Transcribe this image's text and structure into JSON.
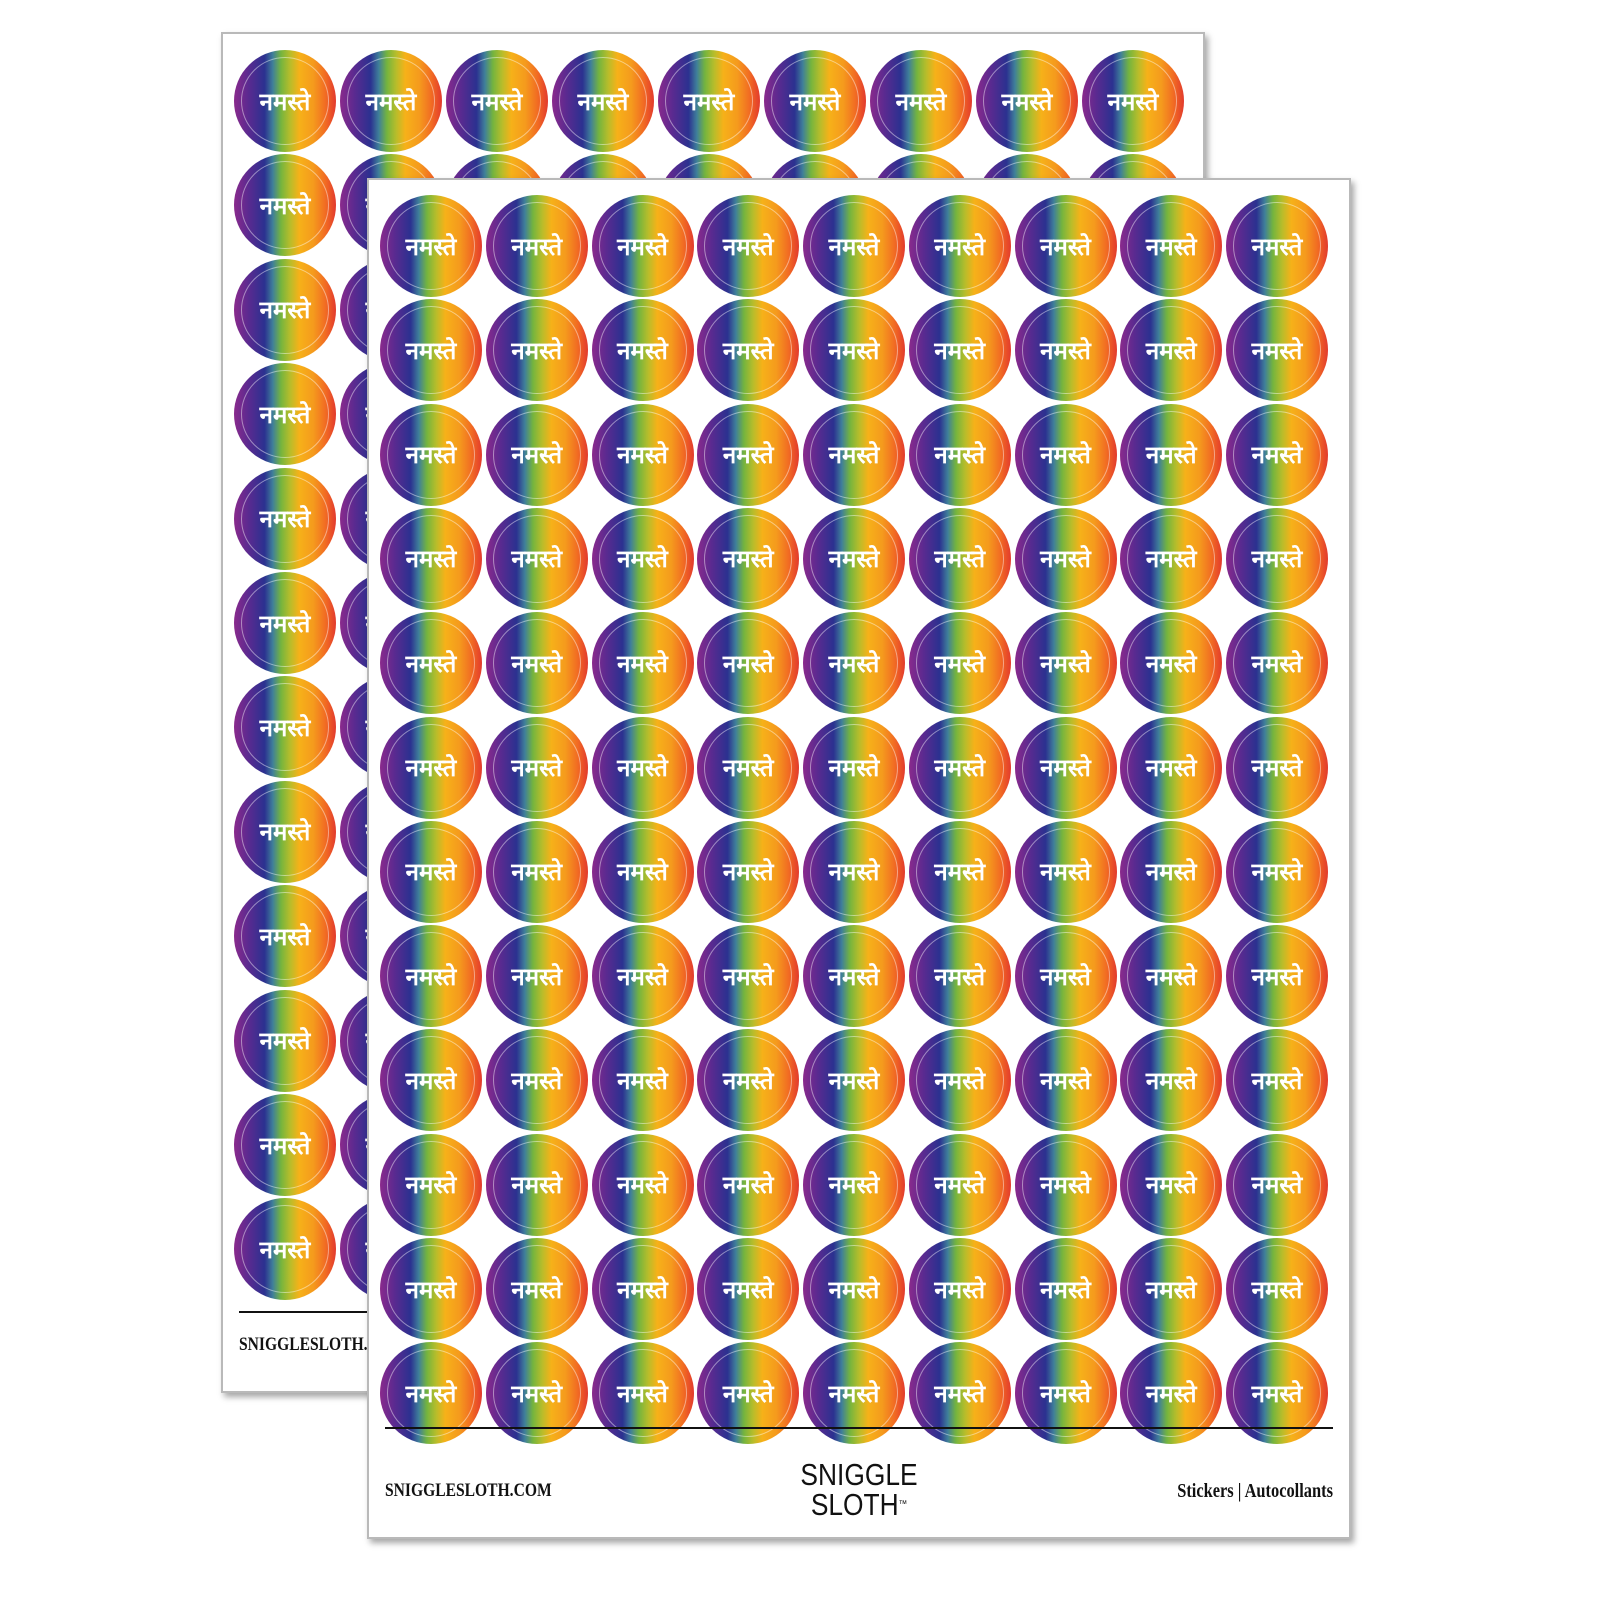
{
  "sticker": {
    "text": "नमस्ते",
    "gradient_colors": [
      "#8a2a8c",
      "#2b3190",
      "#74b43e",
      "#f6b119",
      "#f16a23",
      "#e23a2d"
    ],
    "columns": 9,
    "rows": 12
  },
  "sheets": {
    "back": {
      "website": "SNIGGLESLOTH.C"
    },
    "front": {
      "website": "SNIGGLESLOTH.COM",
      "logo_line1": "SNIGGLE",
      "logo_line2": "SLOTH",
      "logo_tm": "™",
      "tagline": "Stickers  |  Autocollants"
    }
  }
}
